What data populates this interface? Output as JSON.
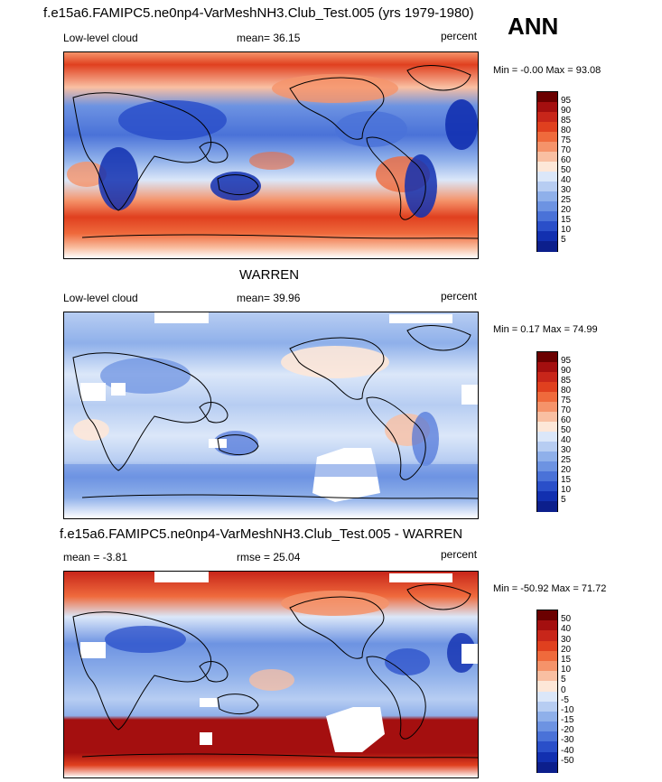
{
  "season": "ANN",
  "panels": [
    {
      "id": "test",
      "title": "f.e15a6.FAMIPC5.ne0np4-VarMeshNH3.Club_Test.005 (yrs 1979-1980)",
      "left_label": "Low-level cloud",
      "center_label": "mean=  36.15",
      "right_label": "percent",
      "minmax": "Min =  -0.00 Max =  93.08",
      "colorbar": {
        "labels": [
          "95",
          "90",
          "85",
          "80",
          "75",
          "70",
          "60",
          "50",
          "40",
          "30",
          "25",
          "20",
          "15",
          "10",
          "5"
        ],
        "colors": [
          "#6b0000",
          "#a40f0f",
          "#c8261a",
          "#e0401f",
          "#ef6a3c",
          "#f5936a",
          "#f9bfa2",
          "#fde7d8",
          "#dbe7f9",
          "#b7cdf2",
          "#8fb0ea",
          "#6d93e2",
          "#4a72d8",
          "#2a4fc9",
          "#1230b0",
          "#0c1f8c"
        ]
      }
    },
    {
      "id": "obs",
      "title": "WARREN",
      "left_label": "Low-level cloud",
      "center_label": "mean=  39.96",
      "right_label": "percent",
      "minmax": "Min =   0.17 Max =  74.99",
      "colorbar": {
        "labels": [
          "95",
          "90",
          "85",
          "80",
          "75",
          "70",
          "60",
          "50",
          "40",
          "30",
          "25",
          "20",
          "15",
          "10",
          "5"
        ],
        "colors": [
          "#6b0000",
          "#a40f0f",
          "#c8261a",
          "#e0401f",
          "#ef6a3c",
          "#f5936a",
          "#f9bfa2",
          "#fde7d8",
          "#dbe7f9",
          "#b7cdf2",
          "#8fb0ea",
          "#6d93e2",
          "#4a72d8",
          "#2a4fc9",
          "#1230b0",
          "#0c1f8c"
        ]
      }
    },
    {
      "id": "diff",
      "title": "f.e15a6.FAMIPC5.ne0np4-VarMeshNH3.Club_Test.005 - WARREN",
      "left_label": "mean =  -3.81",
      "center_label": "rmse =  25.04",
      "right_label": "percent",
      "minmax": "Min = -50.92 Max =  71.72",
      "colorbar": {
        "labels": [
          "50",
          "40",
          "30",
          "20",
          "15",
          "10",
          "5",
          "0",
          "-5",
          "-10",
          "-15",
          "-20",
          "-30",
          "-40",
          "-50"
        ],
        "colors": [
          "#6b0000",
          "#a40f0f",
          "#c8261a",
          "#e0401f",
          "#ef6a3c",
          "#f5936a",
          "#f9bfa2",
          "#fde7d8",
          "#dbe7f9",
          "#b7cdf2",
          "#8fb0ea",
          "#6d93e2",
          "#4a72d8",
          "#2a4fc9",
          "#1230b0",
          "#0c1f8c"
        ]
      }
    }
  ]
}
